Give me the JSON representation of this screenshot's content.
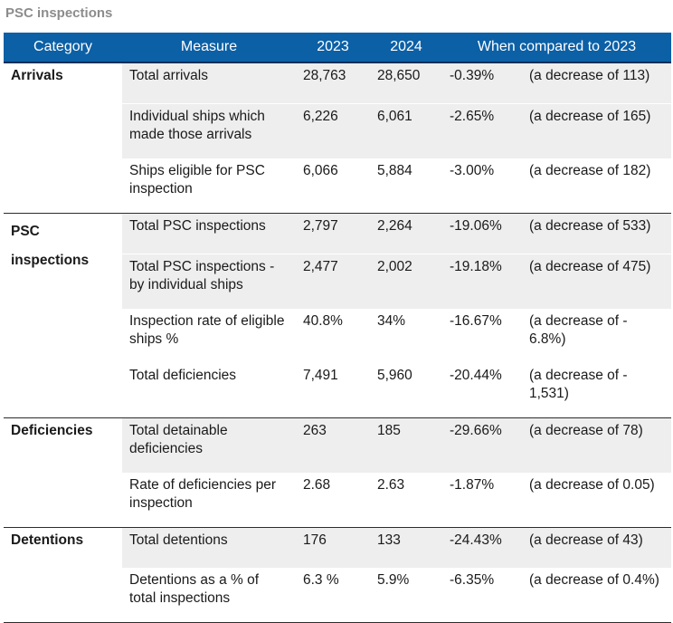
{
  "title": "PSC inspections",
  "columns": [
    "Category",
    "Measure",
    "2023",
    "2024",
    "When compared to 2023"
  ],
  "groups": [
    {
      "category": "Arrivals",
      "rows": [
        {
          "measure": "Total arrivals",
          "y2023": "28,763",
          "y2024": "28,650",
          "pct": "-0.39%",
          "note": "(a decrease of 113)"
        },
        {
          "measure": "Individual ships which made those arrivals",
          "y2023": "6,226",
          "y2024": "6,061",
          "pct": "-2.65%",
          "note": "(a decrease of 165)"
        },
        {
          "measure": "Ships eligible for PSC inspection",
          "y2023": "6,066",
          "y2024": "5,884",
          "pct": "-3.00%",
          "note": "(a decrease of 182)"
        }
      ]
    },
    {
      "category": "PSC inspections",
      "category_lines": [
        "PSC",
        "inspections"
      ],
      "rows": [
        {
          "measure": "Total PSC inspections",
          "y2023": "2,797",
          "y2024": "2,264",
          "pct": "-19.06%",
          "note": "(a decrease of 533)"
        },
        {
          "measure": "Total PSC inspections - by individual ships",
          "y2023": "2,477",
          "y2024": "2,002",
          "pct": "-19.18%",
          "note": "(a decrease of 475)"
        },
        {
          "measure": "Inspection rate of eligible ships %",
          "y2023": "40.8%",
          "y2024": "34%",
          "pct": "-16.67%",
          "note": "(a decrease of - 6.8%)"
        },
        {
          "measure": "Total deficiencies",
          "y2023": "7,491",
          "y2024": "5,960",
          "pct": "-20.44%",
          "note": "(a decrease of - 1,531)"
        }
      ]
    },
    {
      "category": "Deficiencies",
      "rows": [
        {
          "measure": "Total detainable deficiencies",
          "y2023": "263",
          "y2024": "185",
          "pct": "-29.66%",
          "note": "(a decrease of 78)"
        },
        {
          "measure": "Rate of deficiencies per inspection",
          "y2023": "2.68",
          "y2024": "2.63",
          "pct": "-1.87%",
          "note": "(a decrease of 0.05)"
        }
      ]
    },
    {
      "category": "Detentions",
      "rows": [
        {
          "measure": "Total detentions",
          "y2023": "176",
          "y2024": "133",
          "pct": "-24.43%",
          "note": "(a decrease of 43)"
        },
        {
          "measure": "Detentions as a % of total inspections",
          "y2023": "6.3 %",
          "y2024": "5.9%",
          "pct": "-6.35%",
          "note": "(a decrease of 0.4%)"
        }
      ]
    }
  ],
  "colors": {
    "header_bg": "#0c60a6",
    "header_text": "#ffffff",
    "row_shade": "#eeeeee",
    "title_text": "#8c8c8c"
  }
}
